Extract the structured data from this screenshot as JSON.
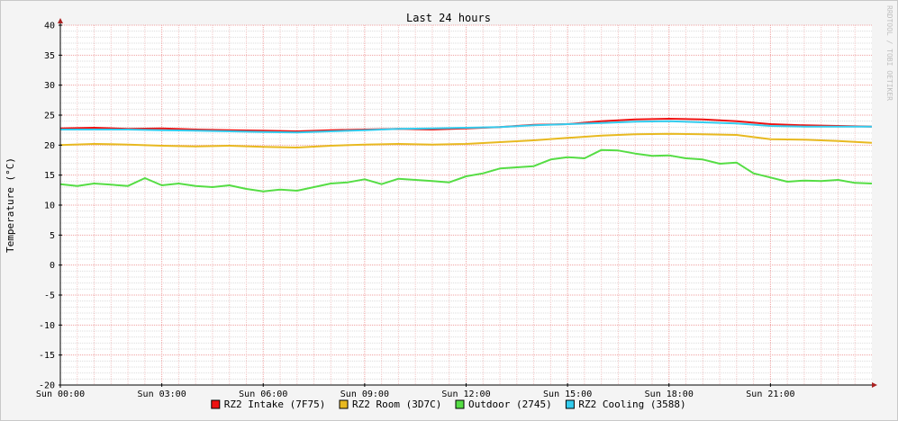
{
  "chart_data": {
    "type": "line",
    "title": "Last 24 hours",
    "ylabel": "Temperature (°C)",
    "xlabel": "",
    "watermark": "RRDTOOL / TOBI OETIKER",
    "ylim": [
      -20,
      40
    ],
    "yticks": [
      -20,
      -15,
      -10,
      -5,
      0,
      5,
      10,
      15,
      20,
      25,
      30,
      35,
      40
    ],
    "xlim": [
      0,
      24
    ],
    "xticks": [
      {
        "hour": 0,
        "label": "Sun 00:00"
      },
      {
        "hour": 3,
        "label": "Sun 03:00"
      },
      {
        "hour": 6,
        "label": "Sun 06:00"
      },
      {
        "hour": 9,
        "label": "Sun 09:00"
      },
      {
        "hour": 12,
        "label": "Sun 12:00"
      },
      {
        "hour": 15,
        "label": "Sun 15:00"
      },
      {
        "hour": 18,
        "label": "Sun 18:00"
      },
      {
        "hour": 21,
        "label": "Sun 21:00"
      }
    ],
    "grid": true,
    "legend_position": "bottom",
    "series": [
      {
        "name": "RZ2 Intake (7F75)",
        "color": "#ee1111",
        "x": [
          0,
          1,
          2,
          3,
          4,
          5,
          6,
          7,
          8,
          9,
          10,
          11,
          12,
          13,
          14,
          15,
          16,
          17,
          18,
          19,
          20,
          21,
          22,
          23,
          24
        ],
        "y": [
          22.8,
          22.9,
          22.7,
          22.8,
          22.6,
          22.5,
          22.4,
          22.3,
          22.5,
          22.6,
          22.7,
          22.6,
          22.8,
          23.0,
          23.4,
          23.5,
          24.0,
          24.3,
          24.4,
          24.3,
          24.0,
          23.5,
          23.3,
          23.2,
          23.1
        ]
      },
      {
        "name": "RZ2 Room (3D7C)",
        "color": "#e8b920",
        "x": [
          0,
          1,
          2,
          3,
          4,
          5,
          6,
          7,
          8,
          9,
          10,
          11,
          12,
          13,
          14,
          15,
          16,
          17,
          18,
          19,
          20,
          21,
          22,
          23,
          24
        ],
        "y": [
          20.0,
          20.2,
          20.1,
          19.9,
          19.8,
          19.9,
          19.7,
          19.6,
          19.9,
          20.1,
          20.2,
          20.1,
          20.2,
          20.5,
          20.8,
          21.2,
          21.6,
          21.8,
          21.9,
          21.8,
          21.7,
          21.0,
          20.9,
          20.7,
          20.4
        ]
      },
      {
        "name": "Outdoor (2745)",
        "color": "#55dd44",
        "x": [
          0,
          0.5,
          1,
          1.5,
          2,
          2.5,
          3,
          3.5,
          4,
          4.5,
          5,
          5.5,
          6,
          6.5,
          7,
          7.5,
          8,
          8.5,
          9,
          9.5,
          10,
          10.5,
          11,
          11.5,
          12,
          12.5,
          13,
          13.5,
          14,
          14.5,
          15,
          15.5,
          16,
          16.5,
          17,
          17.5,
          18,
          18.5,
          19,
          19.5,
          20,
          20.5,
          21,
          21.5,
          22,
          22.5,
          23,
          23.5,
          24
        ],
        "y": [
          13.5,
          13.2,
          13.6,
          13.4,
          13.2,
          14.5,
          13.3,
          13.6,
          13.2,
          13.0,
          13.3,
          12.7,
          12.3,
          12.6,
          12.4,
          13.0,
          13.6,
          13.8,
          14.3,
          13.5,
          14.4,
          14.2,
          14.0,
          13.8,
          14.8,
          15.3,
          16.1,
          16.3,
          16.5,
          17.6,
          18.0,
          17.8,
          19.2,
          19.1,
          18.6,
          18.2,
          18.3,
          17.8,
          17.6,
          16.9,
          17.1,
          15.3,
          14.6,
          13.9,
          14.1,
          14.0,
          14.2,
          13.7,
          13.6
        ]
      },
      {
        "name": "RZ2 Cooling (3588)",
        "color": "#33ccee",
        "x": [
          0,
          1,
          2,
          3,
          4,
          5,
          6,
          7,
          8,
          9,
          10,
          11,
          12,
          13,
          14,
          15,
          16,
          17,
          18,
          19,
          20,
          21,
          22,
          23,
          24
        ],
        "y": [
          22.6,
          22.6,
          22.6,
          22.5,
          22.4,
          22.3,
          22.2,
          22.1,
          22.3,
          22.5,
          22.7,
          22.8,
          22.9,
          23.0,
          23.3,
          23.5,
          23.7,
          23.9,
          24.0,
          23.8,
          23.6,
          23.2,
          23.1,
          23.1,
          23.1
        ]
      }
    ]
  }
}
